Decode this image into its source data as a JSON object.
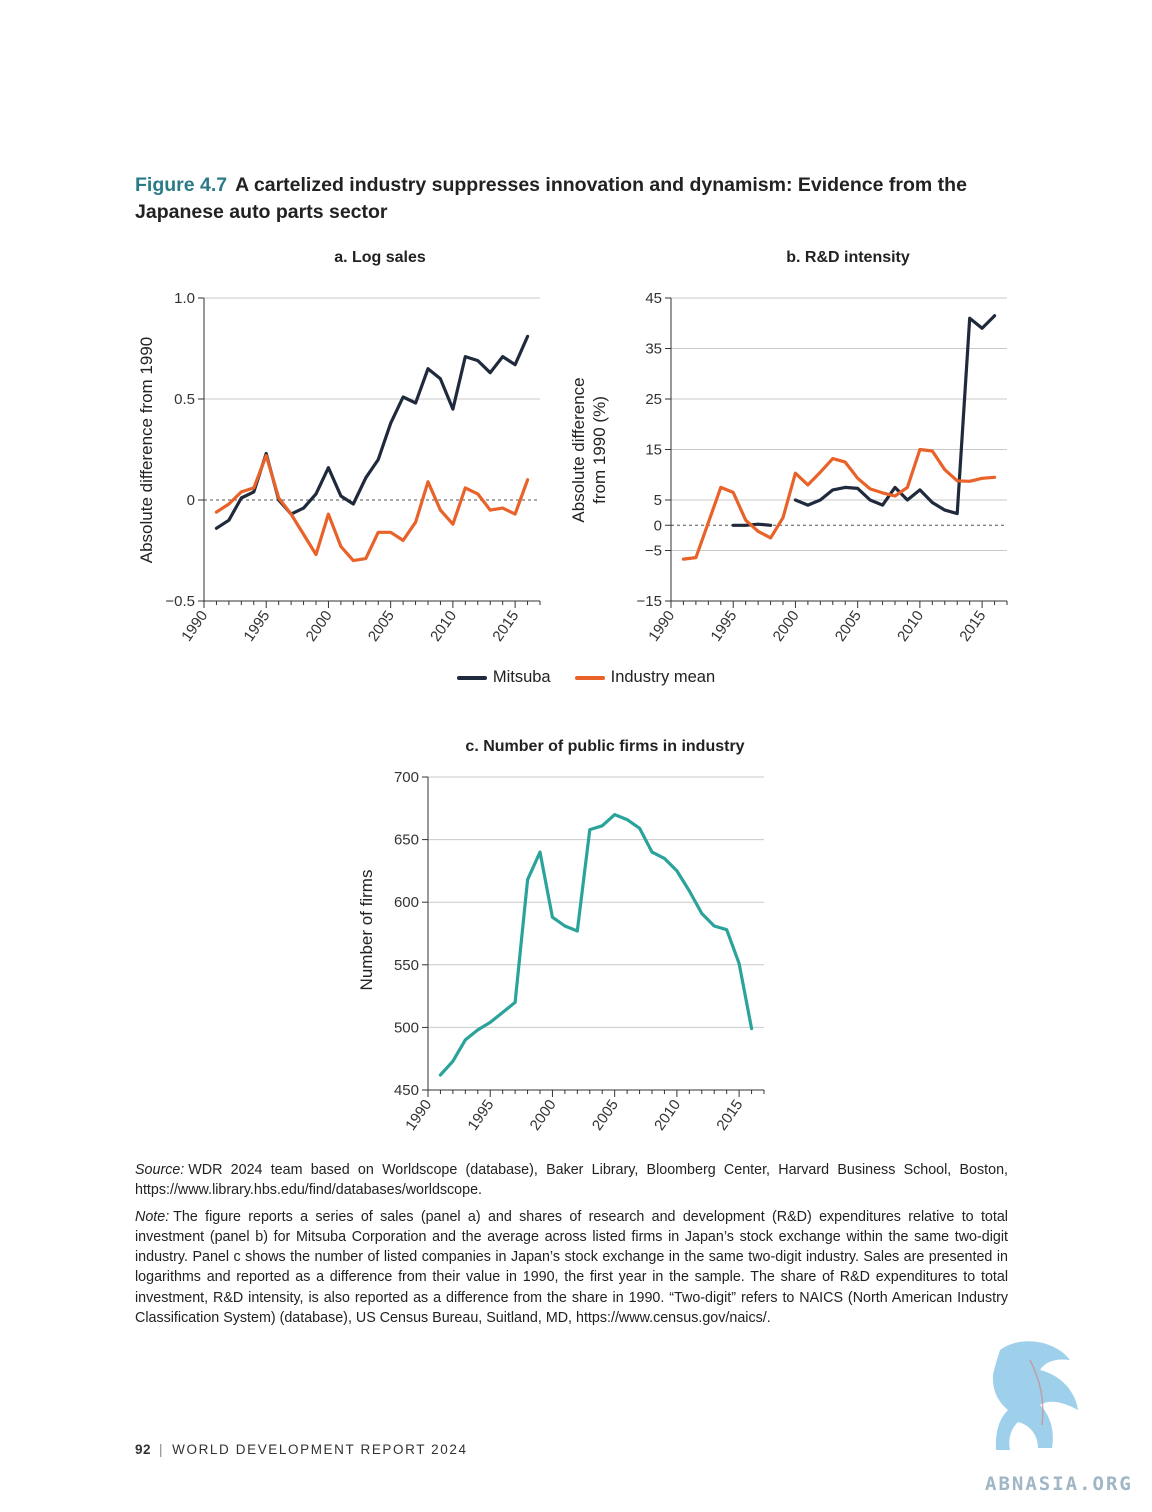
{
  "figure": {
    "number": "Figure 4.7",
    "title": "A cartelized industry suppresses innovation and dynamism: Evidence from the Japanese auto parts sector"
  },
  "legend": [
    {
      "name": "Mitsuba",
      "color": "#1f2a3c"
    },
    {
      "name": "Industry mean",
      "color": "#e8622a"
    }
  ],
  "chart_data": [
    {
      "type": "line",
      "title": "a. Log sales",
      "xlabel": "",
      "ylabel": "Absolute difference from 1990",
      "xlim": [
        1990,
        2017
      ],
      "ylim": [
        -0.5,
        1.0
      ],
      "xticks": [
        "1990",
        "1995",
        "2000",
        "2005",
        "2010",
        "2015"
      ],
      "yticks": [
        "1.0",
        "0.5",
        "0",
        "−0.5"
      ],
      "ytick_values": [
        1.0,
        0.5,
        0,
        -0.5
      ],
      "reference_line": 0,
      "grid": true,
      "series": [
        {
          "name": "Mitsuba",
          "color": "#1f2a3c",
          "points": [
            [
              1991,
              -0.14
            ],
            [
              1992,
              -0.1
            ],
            [
              1993,
              0.01
            ],
            [
              1994,
              0.04
            ],
            [
              1995,
              0.23
            ],
            [
              1996,
              0.0
            ],
            [
              1997,
              -0.07
            ],
            [
              1998,
              -0.04
            ],
            [
              1999,
              0.03
            ],
            [
              2000,
              0.16
            ],
            [
              2001,
              0.02
            ],
            [
              2002,
              -0.02
            ],
            [
              2003,
              0.11
            ],
            [
              2004,
              0.2
            ],
            [
              2005,
              0.38
            ],
            [
              2006,
              0.51
            ],
            [
              2007,
              0.48
            ],
            [
              2008,
              0.65
            ],
            [
              2009,
              0.6
            ],
            [
              2010,
              0.45
            ],
            [
              2011,
              0.71
            ],
            [
              2012,
              0.69
            ],
            [
              2013,
              0.63
            ],
            [
              2014,
              0.71
            ],
            [
              2015,
              0.67
            ],
            [
              2016,
              0.81
            ]
          ]
        },
        {
          "name": "Industry mean",
          "color": "#e8622a",
          "points": [
            [
              1991,
              -0.06
            ],
            [
              1992,
              -0.02
            ],
            [
              1993,
              0.04
            ],
            [
              1994,
              0.06
            ],
            [
              1995,
              0.22
            ],
            [
              1996,
              0.01
            ],
            [
              1997,
              -0.07
            ],
            [
              1999,
              -0.27
            ],
            [
              2000,
              -0.07
            ],
            [
              2001,
              -0.23
            ],
            [
              2002,
              -0.3
            ],
            [
              2003,
              -0.29
            ],
            [
              2004,
              -0.16
            ],
            [
              2005,
              -0.16
            ],
            [
              2006,
              -0.2
            ],
            [
              2007,
              -0.11
            ],
            [
              2008,
              0.09
            ],
            [
              2009,
              -0.05
            ],
            [
              2010,
              -0.12
            ],
            [
              2011,
              0.06
            ],
            [
              2012,
              0.03
            ],
            [
              2013,
              -0.05
            ],
            [
              2014,
              -0.04
            ],
            [
              2015,
              -0.07
            ],
            [
              2016,
              0.1
            ]
          ]
        }
      ]
    },
    {
      "type": "line",
      "title": "b. R&D intensity",
      "xlabel": "",
      "ylabel_lines": [
        "Absolute difference",
        "from 1990 (%)"
      ],
      "xlim": [
        1990,
        2017
      ],
      "ylim": [
        -15,
        45
      ],
      "xticks": [
        "1990",
        "1995",
        "2000",
        "2005",
        "2010",
        "2015"
      ],
      "yticks": [
        "45",
        "35",
        "25",
        "15",
        "5",
        "0",
        "−5",
        "−15"
      ],
      "ytick_values": [
        45,
        35,
        25,
        15,
        5,
        0,
        -5,
        -15
      ],
      "reference_line": 0,
      "grid": true,
      "series": [
        {
          "name": "Mitsuba",
          "color": "#1f2a3c",
          "segments": [
            [
              [
                1995,
                0
              ],
              [
                1996,
                0
              ],
              [
                1997,
                0.2
              ],
              [
                1998,
                0
              ]
            ],
            [
              [
                2000,
                5
              ],
              [
                2001,
                4
              ],
              [
                2002,
                5
              ],
              [
                2003,
                7
              ],
              [
                2004,
                7.5
              ],
              [
                2005,
                7.3
              ],
              [
                2006,
                5
              ],
              [
                2007,
                4
              ],
              [
                2008,
                7.5
              ],
              [
                2009,
                5
              ],
              [
                2010,
                7
              ],
              [
                2011,
                4.5
              ],
              [
                2012,
                3
              ],
              [
                2013,
                2.3
              ],
              [
                2014,
                41
              ],
              [
                2015,
                39
              ],
              [
                2016,
                41.5
              ]
            ]
          ]
        },
        {
          "name": "Industry mean",
          "color": "#e8622a",
          "segments": [
            [
              [
                1991,
                -6.7
              ],
              [
                1992,
                -6.4
              ],
              [
                1993,
                0.5
              ],
              [
                1994,
                7.5
              ],
              [
                1995,
                6.5
              ],
              [
                1996,
                1
              ],
              [
                1997,
                -1.2
              ],
              [
                1998,
                -2.5
              ],
              [
                1999,
                1.5
              ],
              [
                2000,
                10.3
              ],
              [
                2001,
                8
              ],
              [
                2002,
                10.5
              ],
              [
                2003,
                13.2
              ],
              [
                2004,
                12.5
              ],
              [
                2005,
                9.3
              ],
              [
                2006,
                7.2
              ],
              [
                2007,
                6.4
              ],
              [
                2008,
                5.8
              ],
              [
                2009,
                7.5
              ],
              [
                2010,
                15
              ],
              [
                2011,
                14.7
              ],
              [
                2012,
                11
              ],
              [
                2013,
                8.8
              ],
              [
                2014,
                8.7
              ],
              [
                2015,
                9.3
              ],
              [
                2016,
                9.5
              ]
            ]
          ]
        }
      ]
    },
    {
      "type": "line",
      "title": "c. Number of public firms in industry",
      "xlabel": "",
      "ylabel": "Number of firms",
      "xlim": [
        1990,
        2017
      ],
      "ylim": [
        450,
        700
      ],
      "xticks": [
        "1990",
        "1995",
        "2000",
        "2005",
        "2010",
        "2015"
      ],
      "yticks": [
        "700",
        "650",
        "600",
        "550",
        "500",
        "450"
      ],
      "ytick_values": [
        700,
        650,
        600,
        550,
        500,
        450
      ],
      "grid": true,
      "series": [
        {
          "name": "",
          "color": "#2aa39a",
          "points": [
            [
              1991,
              462
            ],
            [
              1992,
              473
            ],
            [
              1993,
              490
            ],
            [
              1994,
              498
            ],
            [
              1995,
              504
            ],
            [
              1996,
              512
            ],
            [
              1997,
              520
            ],
            [
              1998,
              618
            ],
            [
              1999,
              640
            ],
            [
              2000,
              588
            ],
            [
              2001,
              581
            ],
            [
              2002,
              577
            ],
            [
              2003,
              658
            ],
            [
              2004,
              661
            ],
            [
              2005,
              670
            ],
            [
              2006,
              666
            ],
            [
              2007,
              659
            ],
            [
              2008,
              640
            ],
            [
              2009,
              635
            ],
            [
              2010,
              625
            ],
            [
              2011,
              609
            ],
            [
              2012,
              591
            ],
            [
              2013,
              581
            ],
            [
              2014,
              578
            ],
            [
              2015,
              551
            ],
            [
              2016,
              499
            ]
          ]
        }
      ]
    }
  ],
  "notes": {
    "source_label": "Source:",
    "source_text": "WDR 2024 team based on Worldscope (database), Baker Library, Bloomberg Center, Harvard Business School, Boston, https://www.library.hbs.edu/find/databases/worldscope.",
    "note_label": "Note:",
    "note_text": "The figure reports a series of sales (panel a) and shares of research and development (R&D) expenditures relative to total investment (panel b) for Mitsuba Corporation and the average across listed firms in Japan’s stock exchange within the same two-digit industry. Panel c shows the number of listed companies in Japan’s stock exchange in the same two-digit industry. Sales are presented in logarithms and reported as a difference from their value in 1990, the first year in the sample. The share of R&D expenditures to total investment, R&D intensity, is also reported as a difference from the share in 1990. “Two-digit” refers to NAICS (North American Industry Classification System) (database), US Census Bureau, Suitland, MD, https://www.census.gov/naics/."
  },
  "footer": {
    "page_number": "92",
    "separator": "|",
    "publication": "WORLD DEVELOPMENT REPORT 2024"
  },
  "watermark": {
    "text": "ABNASIA.ORG",
    "icon": "griffin-logo"
  }
}
